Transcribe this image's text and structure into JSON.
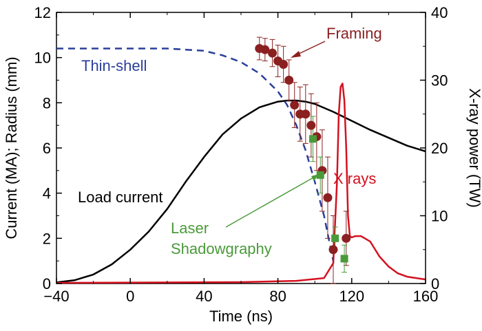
{
  "chart_data": {
    "type": "line",
    "xlabel": "Time (ns)",
    "ylabel_left": "Current (MA); Radius (mm)",
    "ylabel_right": "X-ray power (TW)",
    "xlim": [
      -40,
      160
    ],
    "ylim_left": [
      0,
      12
    ],
    "ylim_right": [
      0,
      40
    ],
    "x_ticks": [
      "−40",
      "0",
      "40",
      "80",
      "120",
      "160"
    ],
    "y_ticks_left": [
      "0",
      "2",
      "4",
      "6",
      "8",
      "10",
      "12"
    ],
    "y_ticks_right": [
      "0",
      "10",
      "20",
      "30",
      "40"
    ],
    "grid": false,
    "colors": {
      "load_current": "#000000",
      "thin_shell": "#2a3f9a",
      "xrays": "#d4101e",
      "framing": "#8b2020",
      "laser": "#4a9a3a"
    },
    "annotations": {
      "thin_shell": "Thin-shell",
      "load_current": "Load current",
      "xrays": "X rays",
      "framing": "Framing",
      "laser_line1": "Laser",
      "laser_line2": "Shadowgraphy"
    },
    "series": [
      {
        "axis": "left",
        "style": "solid",
        "points": [
          [
            -40,
            0.05
          ],
          [
            -30,
            0.15
          ],
          [
            -20,
            0.4
          ],
          [
            -10,
            0.85
          ],
          [
            0,
            1.5
          ],
          [
            10,
            2.3
          ],
          [
            20,
            3.3
          ],
          [
            30,
            4.5
          ],
          [
            40,
            5.6
          ],
          [
            50,
            6.6
          ],
          [
            60,
            7.3
          ],
          [
            70,
            7.8
          ],
          [
            80,
            8.05
          ],
          [
            85,
            8.1
          ],
          [
            90,
            8.1
          ],
          [
            95,
            8.05
          ],
          [
            100,
            7.95
          ],
          [
            110,
            7.6
          ],
          [
            120,
            7.2
          ],
          [
            130,
            6.8
          ],
          [
            140,
            6.45
          ],
          [
            150,
            6.1
          ],
          [
            160,
            5.85
          ]
        ]
      },
      {
        "axis": "left",
        "style": "dashed",
        "points": [
          [
            -40,
            10.4
          ],
          [
            0,
            10.4
          ],
          [
            20,
            10.4
          ],
          [
            40,
            10.3
          ],
          [
            50,
            10.1
          ],
          [
            60,
            9.8
          ],
          [
            70,
            9.3
          ],
          [
            80,
            8.5
          ],
          [
            85,
            7.9
          ],
          [
            90,
            7.0
          ],
          [
            95,
            5.9
          ],
          [
            100,
            4.5
          ],
          [
            105,
            3.0
          ],
          [
            108,
            1.8
          ],
          [
            110,
            1.0
          ]
        ]
      },
      {
        "axis": "right",
        "style": "solid",
        "points": [
          [
            -40,
            0.1
          ],
          [
            60,
            0.2
          ],
          [
            90,
            0.4
          ],
          [
            105,
            0.8
          ],
          [
            110,
            3
          ],
          [
            112,
            15
          ],
          [
            113,
            25
          ],
          [
            114,
            29
          ],
          [
            115,
            29.5
          ],
          [
            116,
            27
          ],
          [
            117,
            20
          ],
          [
            118,
            10
          ],
          [
            119,
            7
          ],
          [
            120,
            6.8
          ],
          [
            122,
            7
          ],
          [
            125,
            7
          ],
          [
            130,
            6.2
          ],
          [
            135,
            4
          ],
          [
            140,
            2.5
          ],
          [
            145,
            1.5
          ],
          [
            150,
            1
          ],
          [
            160,
            0.6
          ]
        ]
      }
    ],
    "framing_points": [
      {
        "x": 70,
        "y": 10.4,
        "err": 0.5
      },
      {
        "x": 73,
        "y": 10.35,
        "err": 0.5
      },
      {
        "x": 77,
        "y": 10.2,
        "err": 0.6
      },
      {
        "x": 80,
        "y": 9.85,
        "err": 0.7
      },
      {
        "x": 83,
        "y": 9.7,
        "err": 0.8
      },
      {
        "x": 86,
        "y": 9.0,
        "err": 0.9
      },
      {
        "x": 89,
        "y": 7.9,
        "err": 1.0
      },
      {
        "x": 92,
        "y": 7.5,
        "err": 1.2
      },
      {
        "x": 95,
        "y": 7.5,
        "err": 1.3
      },
      {
        "x": 98,
        "y": 7.0,
        "err": 1.4
      },
      {
        "x": 101,
        "y": 6.5,
        "err": 1.5
      },
      {
        "x": 104,
        "y": 5.0,
        "err": 1.8
      },
      {
        "x": 107,
        "y": 3.8,
        "err": 1.8
      },
      {
        "x": 110,
        "y": 1.5,
        "err": 1.5
      },
      {
        "x": 117,
        "y": 2.0,
        "err": 1.2
      }
    ],
    "laser_points": [
      {
        "x": 99,
        "y": 6.4,
        "err": 1.0
      },
      {
        "x": 103,
        "y": 4.8,
        "err": 0.8
      },
      {
        "x": 111,
        "y": 2.0,
        "err": 0.5
      },
      {
        "x": 116,
        "y": 1.1,
        "err": 0.6
      }
    ]
  }
}
